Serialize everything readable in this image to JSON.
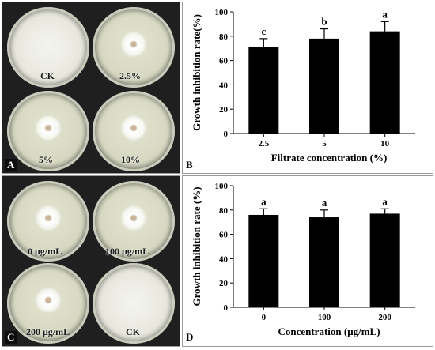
{
  "panel_a": {
    "letter": "A",
    "dishes": [
      {
        "label": "CK",
        "coverage": "full"
      },
      {
        "label": "2.5%",
        "coverage": "colony"
      },
      {
        "label": "5%",
        "coverage": "colony"
      },
      {
        "label": "10%",
        "coverage": "colony"
      }
    ]
  },
  "panel_c": {
    "letter": "C",
    "dishes": [
      {
        "label": "0 μg/mL",
        "coverage": "colony"
      },
      {
        "label": "100 μg/mL",
        "coverage": "colony"
      },
      {
        "label": "200 μg/mL",
        "coverage": "colony"
      },
      {
        "label": "CK",
        "coverage": "full"
      }
    ]
  },
  "chart_data": [
    {
      "panel": "B",
      "type": "bar",
      "categories": [
        "2.5",
        "5",
        "10"
      ],
      "values": [
        71,
        78,
        84
      ],
      "errors": [
        7,
        8,
        8
      ],
      "significance": [
        "c",
        "b",
        "a"
      ],
      "xlabel": "Filtrate concentration (%)",
      "ylabel": "Growth inhibition rate(%)",
      "ylim": [
        0,
        100
      ],
      "yticks": [
        0,
        20,
        40,
        60,
        80,
        100
      ],
      "bar_color": "#000000",
      "grid": false
    },
    {
      "panel": "D",
      "type": "bar",
      "categories": [
        "0",
        "100",
        "200"
      ],
      "values": [
        76,
        74,
        77
      ],
      "errors": [
        5,
        6,
        4
      ],
      "significance": [
        "a",
        "a",
        "a"
      ],
      "xlabel": "Concentration (μg/mL)",
      "ylabel": "Growth inhibition rate (%)",
      "ylim": [
        0,
        100
      ],
      "yticks": [
        0,
        20,
        40,
        60,
        80,
        100
      ],
      "bar_color": "#000000",
      "grid": false
    }
  ]
}
